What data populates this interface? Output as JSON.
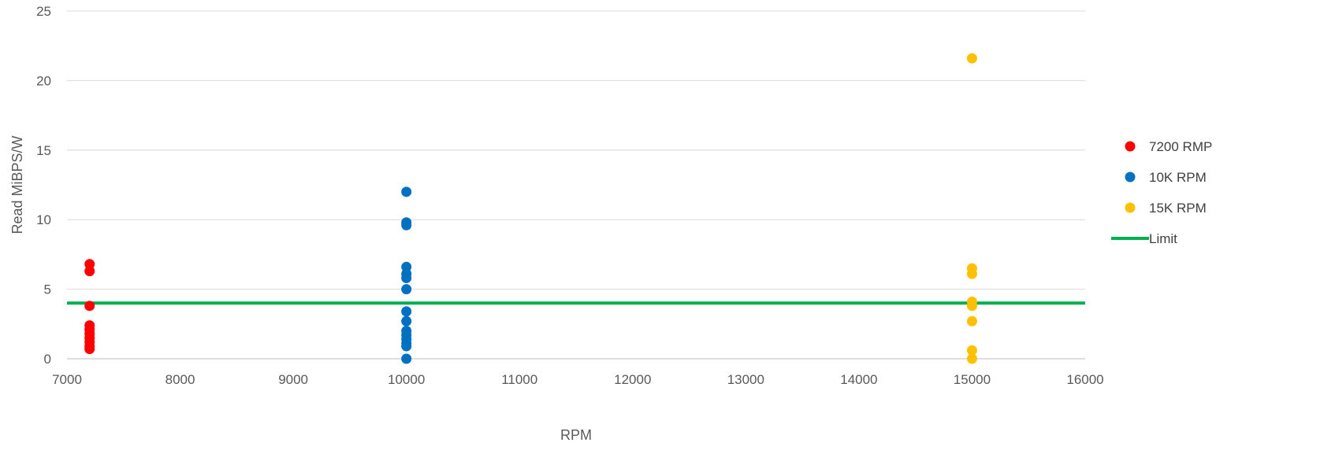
{
  "chart_data": {
    "type": "scatter",
    "title": "",
    "xlabel": "RPM",
    "ylabel": "Read MiBPS/W",
    "xlim": [
      7000,
      16000
    ],
    "ylim": [
      0,
      25
    ],
    "xticks": [
      7000,
      8000,
      9000,
      10000,
      11000,
      12000,
      13000,
      14000,
      15000,
      16000
    ],
    "yticks": [
      0,
      5,
      10,
      15,
      20,
      25
    ],
    "grid": "horizontal",
    "legend_position": "right",
    "series": [
      {
        "name": "7200 RMP",
        "color": "#ff0000",
        "marker": "circle",
        "points": [
          {
            "x": 7200,
            "y": 6.8
          },
          {
            "x": 7200,
            "y": 6.3
          },
          {
            "x": 7200,
            "y": 3.8
          },
          {
            "x": 7200,
            "y": 2.4
          },
          {
            "x": 7200,
            "y": 2.1
          },
          {
            "x": 7200,
            "y": 1.8
          },
          {
            "x": 7200,
            "y": 1.5
          },
          {
            "x": 7200,
            "y": 1.2
          },
          {
            "x": 7200,
            "y": 0.9
          },
          {
            "x": 7200,
            "y": 0.7
          }
        ]
      },
      {
        "name": "10K RPM",
        "color": "#0070c0",
        "marker": "circle",
        "points": [
          {
            "x": 10000,
            "y": 12.0
          },
          {
            "x": 10000,
            "y": 9.8
          },
          {
            "x": 10000,
            "y": 9.6
          },
          {
            "x": 10000,
            "y": 6.6
          },
          {
            "x": 10000,
            "y": 6.1
          },
          {
            "x": 10000,
            "y": 5.8
          },
          {
            "x": 10000,
            "y": 5.0
          },
          {
            "x": 10000,
            "y": 3.4
          },
          {
            "x": 10000,
            "y": 2.7
          },
          {
            "x": 10000,
            "y": 2.0
          },
          {
            "x": 10000,
            "y": 1.7
          },
          {
            "x": 10000,
            "y": 1.4
          },
          {
            "x": 10000,
            "y": 1.1
          },
          {
            "x": 10000,
            "y": 0.9
          },
          {
            "x": 10000,
            "y": 0.0
          }
        ]
      },
      {
        "name": "15K RPM",
        "color": "#ffc000",
        "marker": "circle",
        "points": [
          {
            "x": 15000,
            "y": 21.6
          },
          {
            "x": 15000,
            "y": 6.5
          },
          {
            "x": 15000,
            "y": 6.1
          },
          {
            "x": 15000,
            "y": 4.1
          },
          {
            "x": 15000,
            "y": 3.8
          },
          {
            "x": 15000,
            "y": 2.7
          },
          {
            "x": 15000,
            "y": 0.6
          },
          {
            "x": 15000,
            "y": 0.0
          }
        ]
      },
      {
        "name": "Limit",
        "color": "#00b050",
        "marker": "line",
        "points": [
          {
            "x": 7000,
            "y": 4
          },
          {
            "x": 16000,
            "y": 4
          }
        ]
      }
    ]
  }
}
